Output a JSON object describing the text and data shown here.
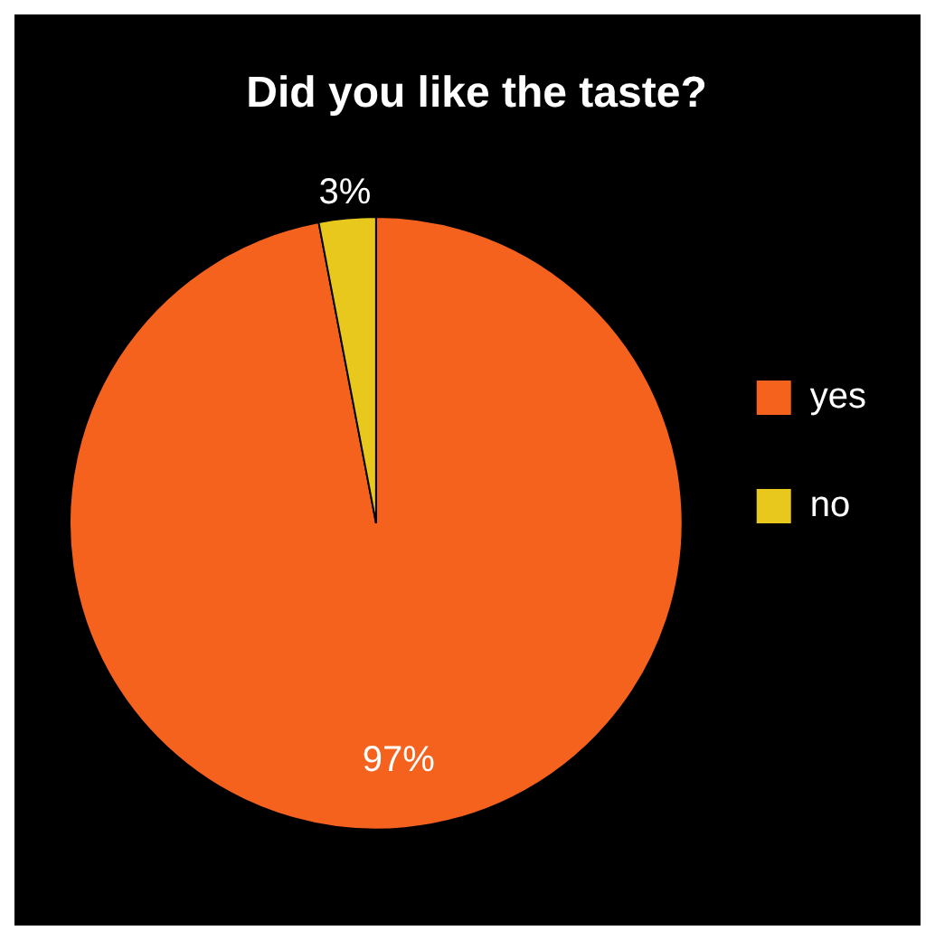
{
  "chart_data": {
    "type": "pie",
    "title": "Did you like the taste?",
    "categories": [
      "yes",
      "no"
    ],
    "values": [
      97,
      3
    ],
    "colors": [
      "#f5621e",
      "#e8c81c"
    ],
    "value_labels": [
      "97%",
      "3%"
    ],
    "legend": "right"
  }
}
